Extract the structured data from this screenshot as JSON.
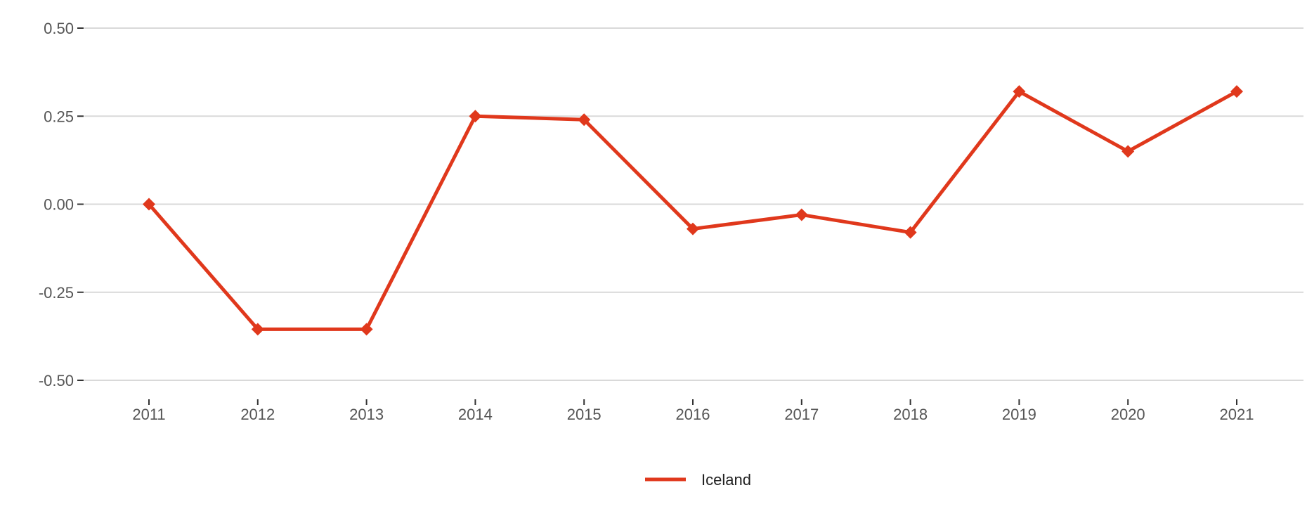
{
  "chart_data": {
    "type": "line",
    "title": "",
    "xlabel": "",
    "ylabel": "",
    "x": [
      "2011",
      "2012",
      "2013",
      "2014",
      "2015",
      "2016",
      "2017",
      "2018",
      "2019",
      "2020",
      "2021"
    ],
    "series": [
      {
        "name": "Iceland",
        "color": "#e0381c",
        "marker": "diamond",
        "values": [
          0.0,
          -0.355,
          -0.355,
          0.25,
          0.24,
          -0.07,
          -0.03,
          -0.08,
          0.32,
          0.15,
          0.32
        ]
      }
    ],
    "ylim": [
      -0.5,
      0.5
    ],
    "yticks": [
      0.5,
      0.25,
      0.0,
      -0.25,
      -0.5
    ],
    "ytick_labels": [
      "0.50",
      "0.25",
      "0.00",
      "-0.25",
      "-0.50"
    ],
    "grid": true,
    "legend_position": "bottom-center"
  }
}
